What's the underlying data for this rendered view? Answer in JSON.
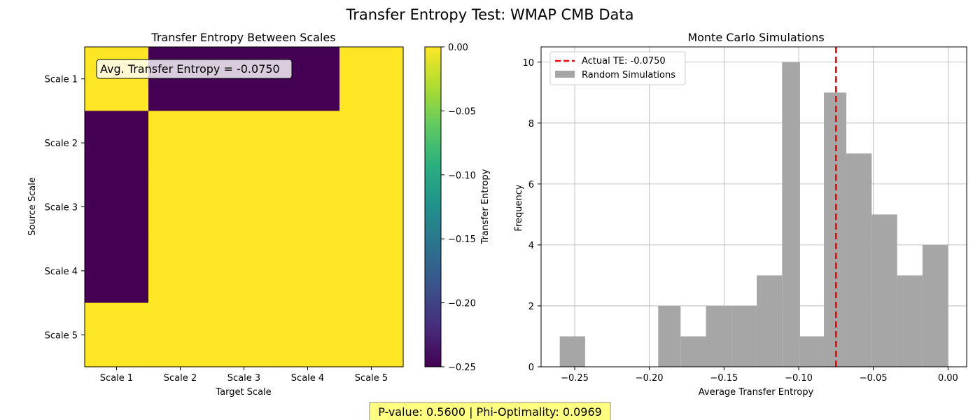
{
  "figure": {
    "title": "Transfer Entropy Test: WMAP CMB Data",
    "footer": "P-value: 0.5600 | Phi-Optimality: 0.0969",
    "footer_bg": "#ffff80"
  },
  "chart_data": [
    {
      "type": "heatmap",
      "title": "Transfer Entropy Between Scales",
      "xlabel": "Target Scale",
      "ylabel": "Source Scale",
      "x_categories": [
        "Scale 1",
        "Scale 2",
        "Scale 3",
        "Scale 4",
        "Scale 5"
      ],
      "y_categories": [
        "Scale 1",
        "Scale 2",
        "Scale 3",
        "Scale 4",
        "Scale 5"
      ],
      "values": [
        [
          0.0,
          -0.25,
          -0.25,
          -0.25,
          0.0
        ],
        [
          -0.25,
          0.0,
          0.0,
          0.0,
          0.0
        ],
        [
          -0.25,
          0.0,
          0.0,
          0.0,
          0.0
        ],
        [
          -0.25,
          0.0,
          0.0,
          0.0,
          0.0
        ],
        [
          0.0,
          0.0,
          0.0,
          0.0,
          0.0
        ]
      ],
      "colormap": "viridis",
      "vmin": -0.25,
      "vmax": 0.0,
      "annotation": "Avg. Transfer Entropy = -0.0750",
      "colorbar": {
        "label": "Transfer Entropy",
        "ticks": [
          0.0,
          -0.05,
          -0.1,
          -0.15,
          -0.2,
          -0.25
        ],
        "tick_labels": [
          "0.00",
          "−0.05",
          "−0.10",
          "−0.15",
          "−0.20",
          "−0.25"
        ]
      }
    },
    {
      "type": "histogram",
      "title": "Monte Carlo Simulations",
      "xlabel": "Average Transfer Entropy",
      "ylabel": "Frequency",
      "bin_edges": [
        -0.26,
        -0.243,
        -0.2261,
        -0.2091,
        -0.1941,
        -0.1791,
        -0.1621,
        -0.1451,
        -0.1281,
        -0.1111,
        -0.0991,
        -0.0831,
        -0.0681,
        -0.0511,
        -0.0341,
        -0.0171,
        0.0
      ],
      "counts": [
        1,
        0,
        0,
        0,
        2,
        1,
        2,
        2,
        3,
        10,
        1,
        9,
        7,
        5,
        3,
        4
      ],
      "bar_color": "#a6a6a6",
      "xlim": [
        -0.2725,
        0.0125
      ],
      "ylim": [
        0,
        10.5
      ],
      "xticks": [
        -0.25,
        -0.2,
        -0.15,
        -0.1,
        -0.05,
        0.0
      ],
      "xtick_labels": [
        "−0.25",
        "−0.20",
        "−0.15",
        "−0.10",
        "−0.05",
        "0.00"
      ],
      "yticks": [
        0,
        2,
        4,
        6,
        8,
        10
      ],
      "ytick_labels": [
        "0",
        "2",
        "4",
        "6",
        "8",
        "10"
      ],
      "grid": true,
      "vline": {
        "x": -0.075,
        "color": "#ff0000"
      },
      "legend": {
        "placement": "top-left",
        "entries": [
          {
            "label": "Actual TE: -0.0750",
            "kind": "dashed-line",
            "color": "#ff0000"
          },
          {
            "label": "Random Simulations",
            "kind": "patch",
            "color": "#a6a6a6"
          }
        ]
      }
    }
  ]
}
